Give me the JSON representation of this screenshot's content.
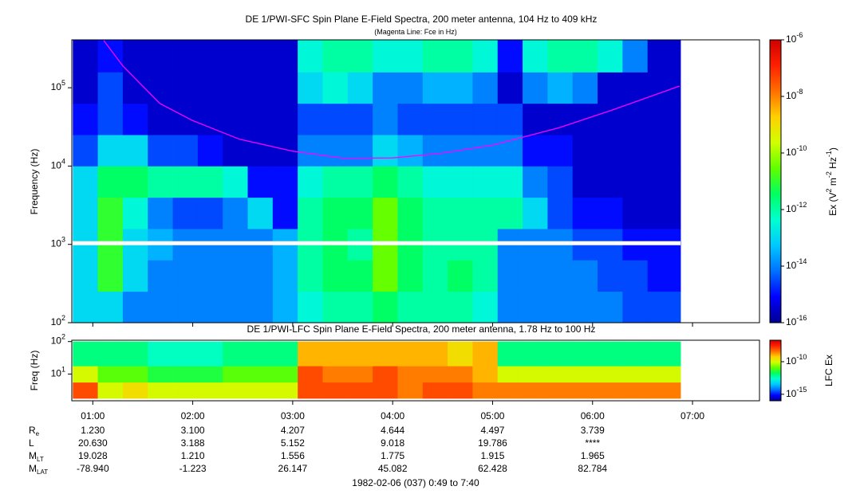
{
  "chart_data": [
    {
      "type": "heatmap",
      "title": "DE 1/PWI-SFC  Spin Plane E-Field Spectra, 200 meter antenna, 104 Hz to 409 kHz",
      "subtitle": "(Magenta Line: Fce in Hz)",
      "y_label": "Frequency (Hz)",
      "xlim": [
        0.79,
        7.67
      ],
      "ylim": [
        100,
        409000
      ],
      "log_y": true,
      "yticks": [
        {
          "value": 100,
          "label": "10^2"
        },
        {
          "value": 1000,
          "label": "10^3"
        },
        {
          "value": 10000,
          "label": "10^4"
        },
        {
          "value": 100000,
          "label": "10^5"
        }
      ],
      "x_bins": [
        0.8,
        1.05,
        1.3,
        1.55,
        1.8,
        2.05,
        2.3,
        2.55,
        2.8,
        3.05,
        3.3,
        3.55,
        3.8,
        4.05,
        4.3,
        4.55,
        4.8,
        5.05,
        5.3,
        5.55,
        5.8,
        6.05,
        6.3,
        6.55,
        6.88
      ],
      "y_bins": [
        100,
        251,
        631,
        1585,
        3981,
        10000,
        25119,
        63096,
        158489,
        409000
      ],
      "z": [
        [
          1e-13,
          1e-13,
          1e-14,
          1e-14,
          1e-14,
          1e-14,
          1e-14,
          1e-14,
          3.2e-14,
          3.2e-13,
          1e-12,
          1e-12,
          3.2e-12,
          1e-12,
          1e-12,
          1e-12,
          3.2e-13,
          1e-14,
          1e-14,
          1e-14,
          1e-14,
          1e-14,
          3.2e-15,
          3.2e-15
        ],
        [
          1e-13,
          1e-11,
          1e-13,
          1e-14,
          1e-14,
          1e-14,
          1e-14,
          1e-14,
          3.2e-14,
          1e-12,
          3.2e-12,
          3.2e-12,
          3.2e-11,
          3.2e-12,
          1e-12,
          3.2e-12,
          1e-12,
          1e-14,
          1e-14,
          1e-14,
          1e-14,
          3.2e-15,
          3.2e-15,
          1e-15
        ],
        [
          1e-13,
          1e-11,
          1e-13,
          3.2e-14,
          1e-14,
          1e-14,
          1e-14,
          1e-14,
          3.2e-14,
          1e-12,
          3.2e-12,
          1e-12,
          3.2e-11,
          3.2e-12,
          1e-12,
          1e-12,
          1e-12,
          1e-14,
          1e-14,
          1e-14,
          3.2e-15,
          3.2e-15,
          1e-15,
          1e-15
        ],
        [
          1e-13,
          1e-11,
          3.2e-13,
          1e-14,
          3.2e-15,
          3.2e-15,
          1e-14,
          1e-13,
          1e-15,
          1e-12,
          3.2e-12,
          3.2e-12,
          3.2e-11,
          3.2e-12,
          1e-12,
          1e-12,
          1e-12,
          1e-12,
          1e-13,
          3.2e-15,
          1e-15,
          1e-15,
          3.2e-16,
          3.2e-16
        ],
        [
          1e-13,
          3.2e-12,
          3.2e-12,
          1e-12,
          1e-12,
          1e-12,
          3.2e-13,
          1e-15,
          1e-15,
          3.2e-13,
          1e-12,
          1e-12,
          3.2e-12,
          1e-12,
          3.2e-13,
          3.2e-13,
          3.2e-13,
          3.2e-13,
          1e-14,
          3.2e-15,
          3.2e-16,
          3.2e-16,
          3.2e-16,
          3.2e-16
        ],
        [
          3.2e-15,
          1e-13,
          1e-13,
          3.2e-15,
          3.2e-15,
          1e-15,
          3.2e-16,
          3.2e-16,
          3.2e-16,
          1e-14,
          1e-14,
          1e-14,
          1e-13,
          3.2e-14,
          1e-14,
          1e-14,
          1e-14,
          1e-14,
          1e-15,
          1e-15,
          3.2e-16,
          3.2e-16,
          3.2e-16,
          3.2e-16
        ],
        [
          1e-15,
          3.2e-15,
          1e-15,
          3.2e-16,
          3.2e-16,
          3.2e-16,
          3.2e-16,
          3.2e-16,
          3.2e-16,
          3.2e-15,
          3.2e-15,
          3.2e-15,
          1e-14,
          3.2e-15,
          3.2e-15,
          3.2e-15,
          3.2e-15,
          3.2e-15,
          3.2e-16,
          3.2e-16,
          3.2e-16,
          3.2e-16,
          3.2e-16,
          3.2e-16
        ],
        [
          3.2e-16,
          3.2e-15,
          3.2e-16,
          3.2e-16,
          3.2e-16,
          3.2e-16,
          3.2e-16,
          3.2e-16,
          3.2e-16,
          1e-13,
          3.2e-13,
          1e-13,
          1e-14,
          1e-14,
          3.2e-14,
          3.2e-14,
          1e-14,
          3.2e-16,
          1e-14,
          3.2e-14,
          1e-14,
          3.2e-16,
          3.2e-16,
          3.2e-16
        ],
        [
          3.2e-16,
          1e-15,
          3.2e-16,
          3.2e-16,
          3.2e-16,
          3.2e-16,
          3.2e-16,
          3.2e-16,
          3.2e-16,
          3.2e-13,
          1e-12,
          1e-12,
          3.2e-13,
          3.2e-13,
          1e-12,
          1e-12,
          3.2e-13,
          1e-15,
          3.2e-13,
          1e-12,
          1e-12,
          3.2e-13,
          1e-14,
          3.2e-16
        ]
      ],
      "series": [
        {
          "color": "#ff00ff",
          "x": [
            1.11,
            1.3,
            1.67,
            2.0,
            2.47,
            3.0,
            3.51,
            4.0,
            4.47,
            5.0,
            5.67,
            6.2,
            6.87
          ],
          "values": [
            400000,
            190000,
            63000,
            38000,
            22000,
            15500,
            12600,
            12700,
            14500,
            18500,
            31000,
            52000,
            105000
          ]
        }
      ],
      "colorbar_label": "Ex (V^2 m^-2 Hz^-1)",
      "zlim": [
        1e-16,
        1e-06
      ],
      "zticks": [
        {
          "value": 1e-16,
          "label": "10^-16"
        },
        {
          "value": 1e-14,
          "label": "10^-14"
        },
        {
          "value": 1e-12,
          "label": "10^-12"
        },
        {
          "value": 1e-10,
          "label": "10^-10"
        },
        {
          "value": 1e-08,
          "label": "10^-8"
        },
        {
          "value": 1e-06,
          "label": "10^-6"
        }
      ],
      "colormap": [
        "#000090",
        "#0000ff",
        "#0070ff",
        "#00c8ff",
        "#00ffd0",
        "#00ff60",
        "#60ff00",
        "#d0ff00",
        "#ffd000",
        "#ff7000",
        "#ff2000",
        "#d00000"
      ]
    },
    {
      "type": "heatmap",
      "title": "DE 1/PWI-LFC  Spin Plane E-Field Spectra, 200 meter antenna, 1.78 Hz to 100 Hz",
      "y_label": "Freq (Hz)",
      "xlim": [
        0.79,
        7.67
      ],
      "xticks": [
        {
          "value": 1,
          "label": "01:00"
        },
        {
          "value": 2,
          "label": "02:00"
        },
        {
          "value": 3,
          "label": "03:00"
        },
        {
          "value": 4,
          "label": "04:00"
        },
        {
          "value": 5,
          "label": "05:00"
        },
        {
          "value": 6,
          "label": "06:00"
        },
        {
          "value": 7,
          "label": "07:00"
        }
      ],
      "ylim": [
        1.5,
        110
      ],
      "log_y": true,
      "yticks": [
        {
          "value": 10,
          "label": "10^1"
        },
        {
          "value": 100,
          "label": "10^2"
        }
      ],
      "x_bins": [
        0.8,
        1.05,
        1.3,
        1.55,
        1.8,
        2.05,
        2.3,
        2.55,
        2.8,
        3.05,
        3.3,
        3.55,
        3.8,
        4.05,
        4.3,
        4.55,
        4.8,
        5.05,
        5.3,
        5.55,
        5.8,
        6.05,
        6.3,
        6.55,
        6.88
      ],
      "y_bins": [
        1.78,
        5.6,
        17.8,
        100
      ],
      "z": [
        [
          1e-08,
          1e-10,
          3.2e-10,
          1e-10,
          1e-10,
          1e-10,
          1e-10,
          1e-10,
          1e-10,
          1e-08,
          1e-08,
          1e-08,
          1e-08,
          3.2e-09,
          1e-08,
          1e-08,
          3.2e-09,
          3.2e-09,
          3.2e-09,
          3.2e-09,
          3.2e-09,
          3.2e-09,
          3.2e-09,
          3.2e-09
        ],
        [
          1e-10,
          1e-11,
          1e-11,
          3.2e-12,
          3.2e-12,
          3.2e-12,
          1e-11,
          1e-11,
          1e-11,
          1e-08,
          3.2e-09,
          3.2e-09,
          1e-08,
          3.2e-09,
          3.2e-09,
          3.2e-09,
          1e-09,
          1e-10,
          1e-10,
          1e-10,
          1e-10,
          1e-10,
          1e-10,
          1e-10
        ],
        [
          1e-12,
          1e-12,
          1e-12,
          3.2e-13,
          3.2e-13,
          3.2e-13,
          1e-12,
          1e-12,
          1e-12,
          1e-09,
          1e-09,
          1e-09,
          1e-09,
          1e-09,
          1e-09,
          3.2e-10,
          1e-09,
          1e-12,
          1e-12,
          1e-12,
          1e-12,
          1e-12,
          1e-12,
          1e-12
        ]
      ],
      "colorbar_label": "LFC Ex",
      "zlim": [
        1e-16,
        2e-07
      ],
      "zticks": [
        {
          "value": 1e-15,
          "label": "10^-15"
        },
        {
          "value": 1e-10,
          "label": "10^-10"
        }
      ],
      "colormap": [
        "#000090",
        "#0000ff",
        "#0070ff",
        "#00c8ff",
        "#00ffd0",
        "#00ff60",
        "#60ff00",
        "#d0ff00",
        "#ffd000",
        "#ff7000",
        "#ff2000",
        "#d00000"
      ]
    }
  ],
  "ephemeris": [
    {
      "label": "R",
      "sub": "e",
      "values": [
        "1.230",
        "3.100",
        "4.207",
        "4.644",
        "4.497",
        "3.739"
      ]
    },
    {
      "label": "L",
      "sub": "",
      "values": [
        "20.630",
        "3.188",
        "5.152",
        "9.018",
        "19.786",
        "****"
      ]
    },
    {
      "label": "M",
      "sub": "LT",
      "values": [
        "19.028",
        "1.210",
        "1.556",
        "1.775",
        "1.915",
        "1.965"
      ]
    },
    {
      "label": "M",
      "sub": "LAT",
      "values": [
        "-78.940",
        "-1.223",
        "26.147",
        "45.082",
        "62.428",
        "82.784"
      ]
    }
  ],
  "footer": "1982-02-06 (037) 0:49 to 7:40"
}
